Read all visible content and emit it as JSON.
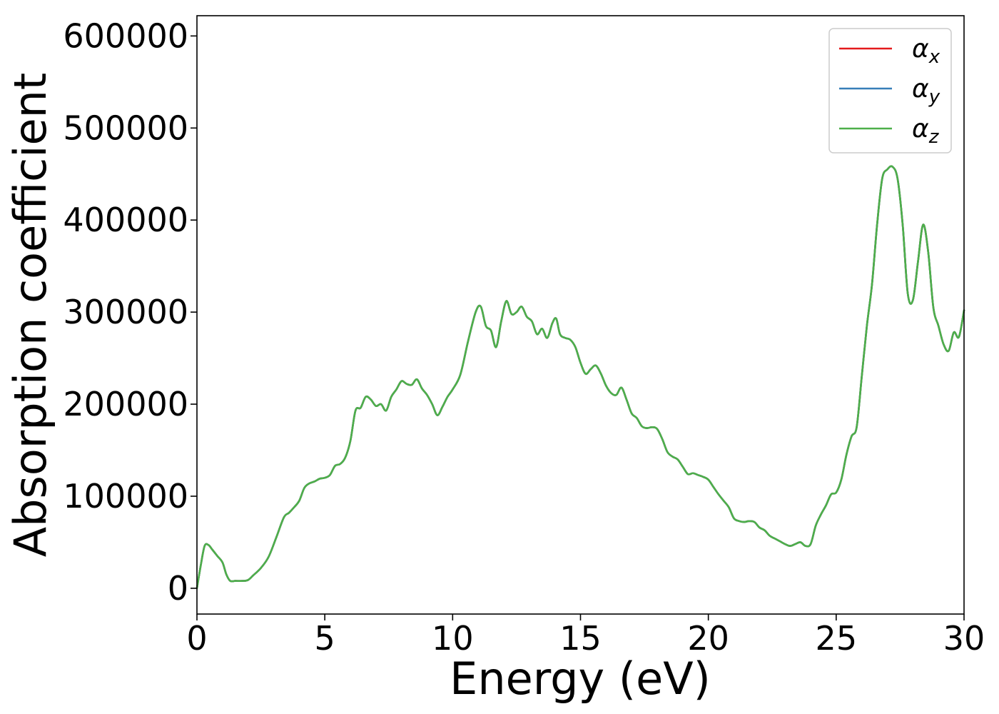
{
  "chart_data": {
    "type": "line",
    "title": "",
    "xlabel": "Energy (eV)",
    "ylabel": "Absorption coefficient",
    "xlim": [
      0,
      30
    ],
    "ylim": [
      -28000,
      622000
    ],
    "grid": false,
    "legend_position": "top-right",
    "x_ticks": [
      {
        "value": 0,
        "label": "0"
      },
      {
        "value": 5,
        "label": "5"
      },
      {
        "value": 10,
        "label": "10"
      },
      {
        "value": 15,
        "label": "15"
      },
      {
        "value": 20,
        "label": "20"
      },
      {
        "value": 25,
        "label": "25"
      },
      {
        "value": 30,
        "label": "30"
      }
    ],
    "y_ticks": [
      {
        "value": 0,
        "label": "0"
      },
      {
        "value": 100000,
        "label": "100000"
      },
      {
        "value": 200000,
        "label": "200000"
      },
      {
        "value": 300000,
        "label": "300000"
      },
      {
        "value": 400000,
        "label": "400000"
      },
      {
        "value": 500000,
        "label": "500000"
      },
      {
        "value": 600000,
        "label": "600000"
      }
    ],
    "x": [
      0,
      0.15,
      0.3,
      0.45,
      0.6,
      0.8,
      1.0,
      1.15,
      1.3,
      1.5,
      1.8,
      2.0,
      2.2,
      2.5,
      2.8,
      3.1,
      3.4,
      3.6,
      3.8,
      4.0,
      4.2,
      4.4,
      4.6,
      4.8,
      5.0,
      5.2,
      5.4,
      5.6,
      5.8,
      6.0,
      6.2,
      6.4,
      6.6,
      6.8,
      7.0,
      7.2,
      7.4,
      7.6,
      7.8,
      8.0,
      8.2,
      8.4,
      8.6,
      8.8,
      9.0,
      9.2,
      9.4,
      9.6,
      9.8,
      10.0,
      10.3,
      10.6,
      10.9,
      11.1,
      11.3,
      11.5,
      11.7,
      11.9,
      12.1,
      12.3,
      12.5,
      12.7,
      12.9,
      13.1,
      13.3,
      13.5,
      13.7,
      13.9,
      14.05,
      14.2,
      14.4,
      14.6,
      14.8,
      15.0,
      15.2,
      15.4,
      15.6,
      15.8,
      16.0,
      16.2,
      16.4,
      16.6,
      16.8,
      17.0,
      17.2,
      17.4,
      17.6,
      17.8,
      18.0,
      18.2,
      18.4,
      18.6,
      18.8,
      19.0,
      19.2,
      19.4,
      19.6,
      19.8,
      20.0,
      20.2,
      20.4,
      20.6,
      20.8,
      21.0,
      21.2,
      21.4,
      21.6,
      21.8,
      22.0,
      22.2,
      22.4,
      22.6,
      22.8,
      23.0,
      23.2,
      23.4,
      23.6,
      23.8,
      24.0,
      24.2,
      24.4,
      24.6,
      24.8,
      25.0,
      25.2,
      25.4,
      25.6,
      25.8,
      26.0,
      26.2,
      26.4,
      26.6,
      26.8,
      27.0,
      27.2,
      27.4,
      27.6,
      27.8,
      28.0,
      28.2,
      28.4,
      28.6,
      28.8,
      29.0,
      29.2,
      29.4,
      29.6,
      29.8,
      30.0
    ],
    "series": [
      {
        "name": "αx",
        "color": "#e41a1c",
        "values": [
          0,
          25000,
          46000,
          47000,
          42000,
          35000,
          28000,
          15000,
          8000,
          8000,
          8000,
          9000,
          14000,
          22000,
          34000,
          55000,
          77000,
          82000,
          88000,
          95000,
          109000,
          114000,
          116000,
          119000,
          120000,
          123000,
          133000,
          135000,
          142000,
          160000,
          193000,
          196000,
          208000,
          205000,
          198000,
          200000,
          193000,
          208000,
          216000,
          225000,
          222000,
          221000,
          227000,
          217000,
          210000,
          200000,
          188000,
          197000,
          208000,
          216000,
          232000,
          268000,
          300000,
          306000,
          285000,
          280000,
          262000,
          290000,
          312000,
          298000,
          300000,
          306000,
          295000,
          290000,
          276000,
          282000,
          272000,
          288000,
          293000,
          276000,
          272000,
          270000,
          262000,
          245000,
          233000,
          238000,
          242000,
          233000,
          220000,
          212000,
          210000,
          218000,
          205000,
          190000,
          185000,
          176000,
          174000,
          175000,
          173000,
          162000,
          148000,
          143000,
          140000,
          132000,
          124000,
          125000,
          123000,
          121000,
          118000,
          110000,
          102000,
          95000,
          88000,
          76000,
          73000,
          72000,
          73000,
          72000,
          66000,
          63000,
          57000,
          54000,
          51000,
          48000,
          46000,
          48000,
          50000,
          46000,
          48000,
          68000,
          80000,
          90000,
          102000,
          104000,
          118000,
          145000,
          165000,
          175000,
          230000,
          285000,
          330000,
          395000,
          445000,
          455000,
          458000,
          445000,
          395000,
          320000,
          313000,
          355000,
          395000,
          365000,
          305000,
          285000,
          265000,
          258000,
          278000,
          273000,
          302000
        ]
      },
      {
        "name": "αy",
        "color": "#377eb8",
        "values": [
          0,
          25000,
          46000,
          47000,
          42000,
          35000,
          28000,
          15000,
          8000,
          8000,
          8000,
          9000,
          14000,
          22000,
          34000,
          55000,
          77000,
          82000,
          88000,
          95000,
          109000,
          114000,
          116000,
          119000,
          120000,
          123000,
          133000,
          135000,
          142000,
          160000,
          193000,
          196000,
          208000,
          205000,
          198000,
          200000,
          193000,
          208000,
          216000,
          225000,
          222000,
          221000,
          227000,
          217000,
          210000,
          200000,
          188000,
          197000,
          208000,
          216000,
          232000,
          268000,
          300000,
          306000,
          285000,
          280000,
          262000,
          290000,
          312000,
          298000,
          300000,
          306000,
          295000,
          290000,
          276000,
          282000,
          272000,
          288000,
          293000,
          276000,
          272000,
          270000,
          262000,
          245000,
          233000,
          238000,
          242000,
          233000,
          220000,
          212000,
          210000,
          218000,
          205000,
          190000,
          185000,
          176000,
          174000,
          175000,
          173000,
          162000,
          148000,
          143000,
          140000,
          132000,
          124000,
          125000,
          123000,
          121000,
          118000,
          110000,
          102000,
          95000,
          88000,
          76000,
          73000,
          72000,
          73000,
          72000,
          66000,
          63000,
          57000,
          54000,
          51000,
          48000,
          46000,
          48000,
          50000,
          46000,
          48000,
          68000,
          80000,
          90000,
          102000,
          104000,
          118000,
          145000,
          165000,
          175000,
          230000,
          285000,
          330000,
          395000,
          445000,
          455000,
          458000,
          445000,
          395000,
          320000,
          313000,
          355000,
          395000,
          365000,
          305000,
          285000,
          265000,
          258000,
          278000,
          273000,
          302000
        ]
      },
      {
        "name": "αz",
        "color": "#4daf4a",
        "values": [
          0,
          25000,
          46000,
          47000,
          42000,
          35000,
          28000,
          15000,
          8000,
          8000,
          8000,
          9000,
          14000,
          22000,
          34000,
          55000,
          77000,
          82000,
          88000,
          95000,
          109000,
          114000,
          116000,
          119000,
          120000,
          123000,
          133000,
          135000,
          142000,
          160000,
          193000,
          196000,
          208000,
          205000,
          198000,
          200000,
          193000,
          208000,
          216000,
          225000,
          222000,
          221000,
          227000,
          217000,
          210000,
          200000,
          188000,
          197000,
          208000,
          216000,
          232000,
          268000,
          300000,
          306000,
          285000,
          280000,
          262000,
          290000,
          312000,
          298000,
          300000,
          306000,
          295000,
          290000,
          276000,
          282000,
          272000,
          288000,
          293000,
          276000,
          272000,
          270000,
          262000,
          245000,
          233000,
          238000,
          242000,
          233000,
          220000,
          212000,
          210000,
          218000,
          205000,
          190000,
          185000,
          176000,
          174000,
          175000,
          173000,
          162000,
          148000,
          143000,
          140000,
          132000,
          124000,
          125000,
          123000,
          121000,
          118000,
          110000,
          102000,
          95000,
          88000,
          76000,
          73000,
          72000,
          73000,
          72000,
          66000,
          63000,
          57000,
          54000,
          51000,
          48000,
          46000,
          48000,
          50000,
          46000,
          48000,
          68000,
          80000,
          90000,
          102000,
          104000,
          118000,
          145000,
          165000,
          175000,
          230000,
          285000,
          330000,
          395000,
          445000,
          455000,
          458000,
          445000,
          395000,
          320000,
          313000,
          355000,
          395000,
          365000,
          305000,
          285000,
          265000,
          258000,
          278000,
          273000,
          302000
        ]
      }
    ],
    "legend": [
      {
        "symbol": "α",
        "subscript": "x",
        "color": "#e41a1c"
      },
      {
        "symbol": "α",
        "subscript": "y",
        "color": "#377eb8"
      },
      {
        "symbol": "α",
        "subscript": "z",
        "color": "#4daf4a"
      }
    ]
  }
}
